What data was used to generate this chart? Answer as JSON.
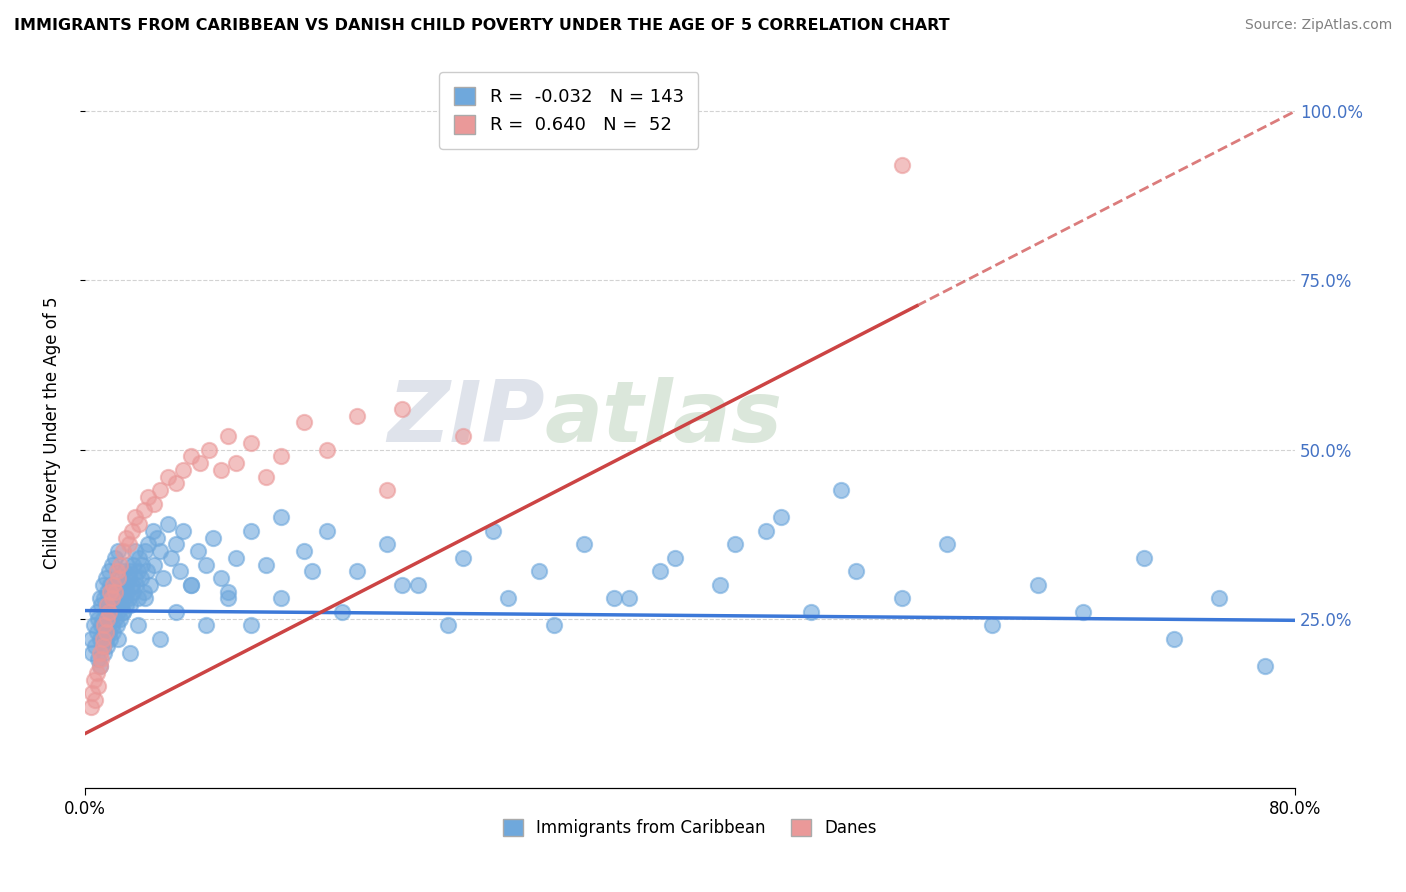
{
  "title": "IMMIGRANTS FROM CARIBBEAN VS DANISH CHILD POVERTY UNDER THE AGE OF 5 CORRELATION CHART",
  "source": "Source: ZipAtlas.com",
  "ylabel": "Child Poverty Under the Age of 5",
  "xlim": [
    0.0,
    0.8
  ],
  "ylim": [
    0.0,
    1.05
  ],
  "xticks": [
    0.0,
    0.8
  ],
  "xticklabels": [
    "0.0%",
    "80.0%"
  ],
  "yticks": [
    0.25,
    0.5,
    0.75,
    1.0
  ],
  "yticklabels": [
    "25.0%",
    "50.0%",
    "75.0%",
    "100.0%"
  ],
  "legend1_R": "-0.032",
  "legend1_N": "143",
  "legend2_R": "0.640",
  "legend2_N": "52",
  "blue_color": "#6fa8dc",
  "pink_color": "#ea9999",
  "blue_line_color": "#3c78d8",
  "pink_line_color": "#cc4444",
  "trendline_blue_slope": -0.018,
  "trendline_blue_intercept": 0.262,
  "trendline_pink_slope": 1.15,
  "trendline_pink_intercept": 0.08,
  "pink_trendline_solid_end": 0.55,
  "watermark_zip": "ZIP",
  "watermark_atlas": "atlas",
  "blue_scatter_x": [
    0.004,
    0.005,
    0.006,
    0.007,
    0.008,
    0.008,
    0.009,
    0.009,
    0.01,
    0.01,
    0.01,
    0.011,
    0.011,
    0.012,
    0.012,
    0.012,
    0.013,
    0.013,
    0.013,
    0.014,
    0.014,
    0.014,
    0.015,
    0.015,
    0.015,
    0.016,
    0.016,
    0.016,
    0.017,
    0.017,
    0.017,
    0.018,
    0.018,
    0.018,
    0.019,
    0.019,
    0.02,
    0.02,
    0.02,
    0.021,
    0.021,
    0.022,
    0.022,
    0.022,
    0.023,
    0.023,
    0.024,
    0.024,
    0.025,
    0.025,
    0.026,
    0.026,
    0.027,
    0.027,
    0.028,
    0.028,
    0.029,
    0.029,
    0.03,
    0.03,
    0.031,
    0.032,
    0.032,
    0.033,
    0.033,
    0.034,
    0.035,
    0.035,
    0.036,
    0.037,
    0.038,
    0.039,
    0.04,
    0.041,
    0.042,
    0.043,
    0.045,
    0.046,
    0.048,
    0.05,
    0.052,
    0.055,
    0.057,
    0.06,
    0.063,
    0.065,
    0.07,
    0.075,
    0.08,
    0.085,
    0.09,
    0.095,
    0.1,
    0.11,
    0.12,
    0.13,
    0.145,
    0.16,
    0.18,
    0.2,
    0.22,
    0.25,
    0.27,
    0.3,
    0.33,
    0.36,
    0.39,
    0.42,
    0.45,
    0.48,
    0.51,
    0.54,
    0.57,
    0.6,
    0.63,
    0.66,
    0.7,
    0.72,
    0.75,
    0.78,
    0.5,
    0.46,
    0.43,
    0.38,
    0.35,
    0.31,
    0.28,
    0.24,
    0.21,
    0.17,
    0.15,
    0.13,
    0.11,
    0.095,
    0.08,
    0.07,
    0.06,
    0.05,
    0.04,
    0.035,
    0.03,
    0.025,
    0.022
  ],
  "blue_scatter_y": [
    0.22,
    0.2,
    0.24,
    0.21,
    0.23,
    0.26,
    0.19,
    0.25,
    0.22,
    0.28,
    0.18,
    0.24,
    0.27,
    0.21,
    0.25,
    0.3,
    0.2,
    0.23,
    0.28,
    0.22,
    0.26,
    0.31,
    0.21,
    0.24,
    0.29,
    0.23,
    0.27,
    0.32,
    0.22,
    0.25,
    0.3,
    0.24,
    0.28,
    0.33,
    0.23,
    0.26,
    0.25,
    0.29,
    0.34,
    0.24,
    0.27,
    0.26,
    0.3,
    0.35,
    0.25,
    0.28,
    0.27,
    0.31,
    0.26,
    0.29,
    0.28,
    0.32,
    0.27,
    0.3,
    0.29,
    0.33,
    0.28,
    0.31,
    0.27,
    0.32,
    0.3,
    0.29,
    0.33,
    0.31,
    0.35,
    0.3,
    0.32,
    0.28,
    0.34,
    0.31,
    0.33,
    0.29,
    0.35,
    0.32,
    0.36,
    0.3,
    0.38,
    0.33,
    0.37,
    0.35,
    0.31,
    0.39,
    0.34,
    0.36,
    0.32,
    0.38,
    0.3,
    0.35,
    0.33,
    0.37,
    0.31,
    0.29,
    0.34,
    0.38,
    0.33,
    0.4,
    0.35,
    0.38,
    0.32,
    0.36,
    0.3,
    0.34,
    0.38,
    0.32,
    0.36,
    0.28,
    0.34,
    0.3,
    0.38,
    0.26,
    0.32,
    0.28,
    0.36,
    0.24,
    0.3,
    0.26,
    0.34,
    0.22,
    0.28,
    0.18,
    0.44,
    0.4,
    0.36,
    0.32,
    0.28,
    0.24,
    0.28,
    0.24,
    0.3,
    0.26,
    0.32,
    0.28,
    0.24,
    0.28,
    0.24,
    0.3,
    0.26,
    0.22,
    0.28,
    0.24,
    0.2,
    0.26,
    0.22
  ],
  "pink_scatter_x": [
    0.004,
    0.005,
    0.006,
    0.007,
    0.008,
    0.009,
    0.01,
    0.01,
    0.011,
    0.012,
    0.012,
    0.013,
    0.014,
    0.015,
    0.015,
    0.016,
    0.017,
    0.018,
    0.019,
    0.02,
    0.021,
    0.022,
    0.023,
    0.025,
    0.027,
    0.029,
    0.031,
    0.033,
    0.036,
    0.039,
    0.042,
    0.046,
    0.05,
    0.055,
    0.06,
    0.065,
    0.07,
    0.076,
    0.082,
    0.09,
    0.095,
    0.1,
    0.11,
    0.12,
    0.13,
    0.145,
    0.16,
    0.18,
    0.2,
    0.21,
    0.25,
    0.54
  ],
  "pink_scatter_y": [
    0.12,
    0.14,
    0.16,
    0.13,
    0.17,
    0.15,
    0.18,
    0.2,
    0.19,
    0.22,
    0.21,
    0.24,
    0.23,
    0.25,
    0.27,
    0.26,
    0.29,
    0.28,
    0.3,
    0.29,
    0.32,
    0.31,
    0.33,
    0.35,
    0.37,
    0.36,
    0.38,
    0.4,
    0.39,
    0.41,
    0.43,
    0.42,
    0.44,
    0.46,
    0.45,
    0.47,
    0.49,
    0.48,
    0.5,
    0.47,
    0.52,
    0.48,
    0.51,
    0.46,
    0.49,
    0.54,
    0.5,
    0.55,
    0.44,
    0.56,
    0.52,
    0.92
  ]
}
